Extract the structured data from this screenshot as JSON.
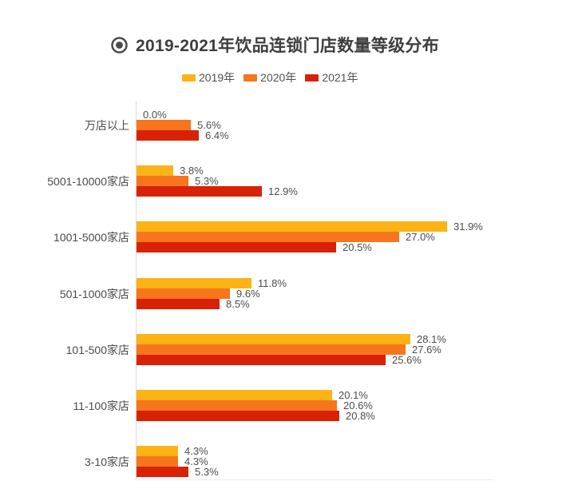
{
  "header": {
    "icon": "target-icon",
    "title": "2019-2021年饮品连锁门店数量等级分布"
  },
  "chart_data": {
    "type": "bar",
    "orientation": "horizontal",
    "title": "2019-2021年饮品连锁门店数量等级分布",
    "categories": [
      "万店以上",
      "5001-10000家店",
      "1001-5000家店",
      "501-1000家店",
      "101-500家店",
      "11-100家店",
      "3-10家店"
    ],
    "series": [
      {
        "name": "2019年",
        "color": "#FCB315",
        "values": [
          0.0,
          3.8,
          31.9,
          11.8,
          28.1,
          20.1,
          4.3
        ]
      },
      {
        "name": "2020年",
        "color": "#F7751D",
        "values": [
          5.6,
          5.3,
          27.0,
          9.6,
          27.6,
          20.6,
          4.3
        ]
      },
      {
        "name": "2021年",
        "color": "#D92105",
        "values": [
          6.4,
          12.9,
          20.5,
          8.5,
          25.6,
          20.8,
          5.3
        ]
      }
    ],
    "value_suffix": "%",
    "value_decimals": 1,
    "xlim": [
      0,
      37
    ],
    "grid": false,
    "data_labels": true,
    "legend_position": "top",
    "colors": {
      "title_text": "#3e3e3e",
      "label_text": "#4b4b4b",
      "value_text": "#4d4d4d",
      "axis_line": "#dcdcdc",
      "icon": "#4a4a4a",
      "background": "#ffffff"
    }
  }
}
